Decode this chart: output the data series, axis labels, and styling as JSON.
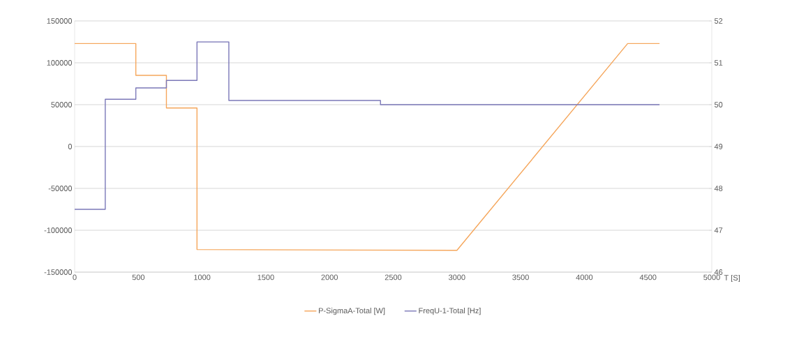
{
  "chart_data": {
    "type": "line",
    "xlabel": "T [S]",
    "xlim": [
      0,
      5000
    ],
    "xticks": [
      0,
      500,
      1000,
      1500,
      2000,
      2500,
      3000,
      3500,
      4000,
      4500,
      5000
    ],
    "ylim": [
      -150000,
      150000
    ],
    "yticks": [
      -150000,
      -100000,
      -50000,
      0,
      50000,
      100000,
      150000
    ],
    "y2lim": [
      46,
      52
    ],
    "y2ticks": [
      46,
      47,
      48,
      49,
      50,
      51,
      52
    ],
    "grid": "y",
    "legend": "bottom",
    "series": [
      {
        "name": "P-SigmaA-Total [W]",
        "color": "#f5a65b",
        "x": [
          0,
          480,
          480,
          720,
          720,
          960,
          960,
          3000,
          4340,
          4590
        ],
        "values": [
          123000,
          123000,
          85000,
          85000,
          46000,
          46000,
          -123000,
          -124000,
          123000,
          123000
        ]
      },
      {
        "name": "FreqU-1-Total [Hz]",
        "type": "step",
        "axis": "y2",
        "color": "#7b78b8",
        "x": [
          0,
          240,
          480,
          720,
          960,
          1210,
          2400,
          4590
        ],
        "values": [
          47.5,
          50.13,
          50.4,
          50.58,
          51.5,
          50.1,
          50.0,
          50.0
        ]
      }
    ]
  }
}
